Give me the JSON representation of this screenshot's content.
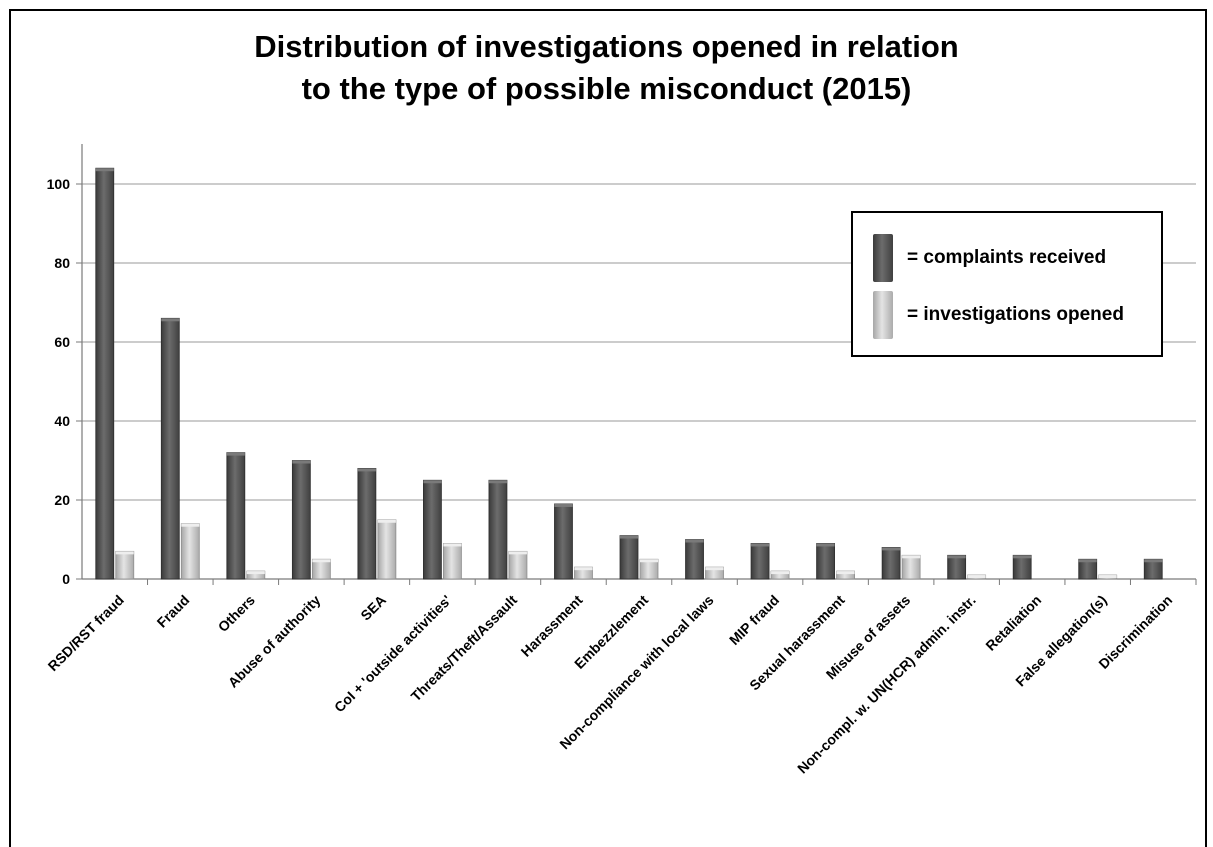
{
  "chart_data": {
    "type": "bar",
    "title": "Distribution of investigations opened in relation to the type of possible misconduct (2015)",
    "title_lines": [
      "Distribution of investigations opened in relation",
      "to the type of possible misconduct (2015)"
    ],
    "categories": [
      "RSD/RST fraud",
      "Fraud",
      "Others",
      "Abuse of authority",
      "SEA",
      "CoI + 'outside activities'",
      "Threats/Theft/Assault",
      "Harassment",
      "Embezzlement",
      "Non-compliance with local laws",
      "MIP fraud",
      "Sexual harassment",
      "Misuse of assets",
      "Non-compl. w. UN(HCR) admin. instr.",
      "Retaliation",
      "False allegation(s)",
      "Discrimination"
    ],
    "series": [
      {
        "name": "= complaints received",
        "color": "#585858",
        "values": [
          104,
          66,
          32,
          30,
          28,
          25,
          25,
          19,
          11,
          10,
          9,
          9,
          8,
          6,
          6,
          5,
          5
        ]
      },
      {
        "name": "= investigations opened",
        "color": "#c4c4c4",
        "values": [
          7,
          14,
          2,
          5,
          15,
          9,
          7,
          3,
          5,
          3,
          2,
          2,
          6,
          1,
          0,
          1,
          0
        ]
      }
    ],
    "y_ticks": [
      0,
      20,
      40,
      60,
      80,
      100
    ],
    "ylim": [
      0,
      110
    ],
    "xlabel": "",
    "ylabel": "",
    "grid": true,
    "legend_position": "top-right",
    "legend": [
      "= complaints received",
      "= investigations opened"
    ]
  }
}
